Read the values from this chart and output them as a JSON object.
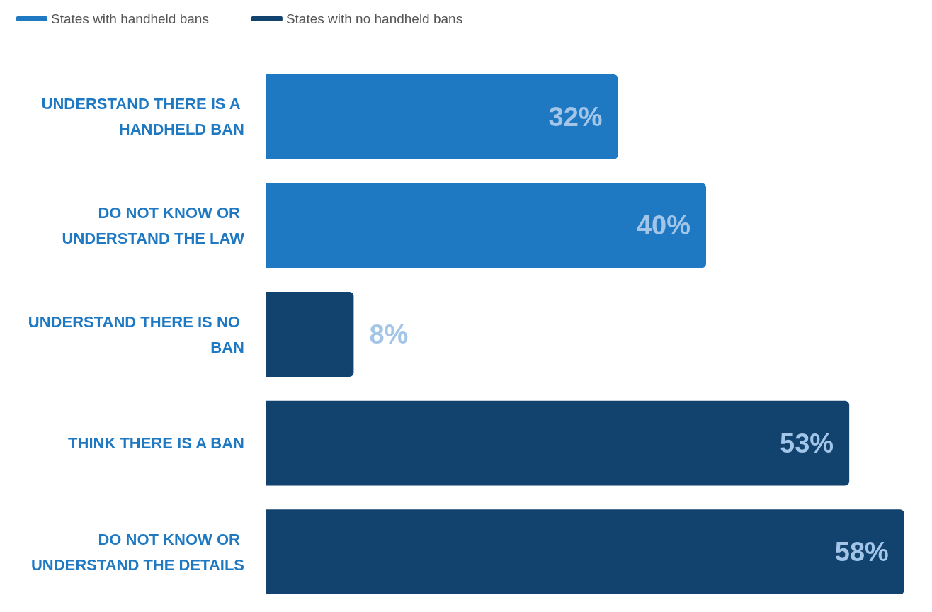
{
  "chart_data": {
    "type": "bar",
    "orientation": "horizontal",
    "stacked": true,
    "legend": "top left",
    "categories": [
      "UNDERSTAND THERE IS A HANDHELD BAN",
      "DO NOT KNOW OR UNDERSTAND THE LAW",
      "UNDERSTAND THERE IS NO BAN",
      "THINK THERE IS A BAN",
      "DO NOT KNOW OR UNDERSTAND THE DETAILS"
    ],
    "series": [
      {
        "name": "States with handheld bans",
        "color": "#1e78c2",
        "values": [
          32,
          40,
          null,
          null,
          null
        ],
        "value_labels": [
          "32%",
          "40%",
          null,
          null,
          null
        ]
      },
      {
        "name": "States with no handheld bans",
        "color": "#12436f",
        "values": [
          null,
          null,
          8,
          53,
          58
        ],
        "value_labels": [
          null,
          null,
          "8%",
          "53%",
          "58%"
        ]
      }
    ]
  }
}
